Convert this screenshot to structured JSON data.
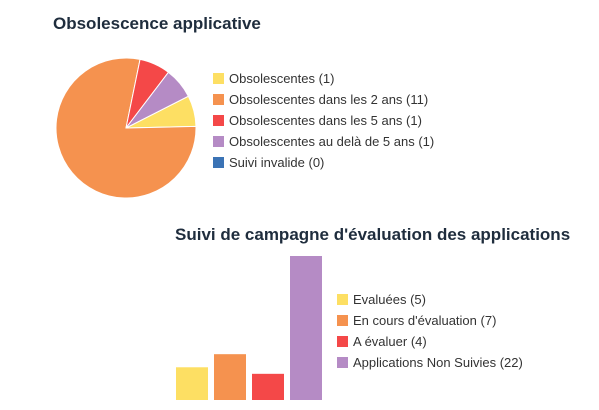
{
  "chart_data": [
    {
      "type": "pie",
      "title": "Obsolescence applicative",
      "legend_position": "right",
      "slices": [
        {
          "label": "Obsolescentes (1)",
          "value": 1,
          "color": "#fddf63"
        },
        {
          "label": "Obsolescentes dans les 2 ans (11)",
          "value": 11,
          "color": "#f5924f"
        },
        {
          "label": "Obsolescentes dans les 5 ans (1)",
          "value": 1,
          "color": "#f44848"
        },
        {
          "label": "Obsolescentes au delà de 5 ans (1)",
          "value": 1,
          "color": "#b58bc5"
        },
        {
          "label": "Suivi invalide (0)",
          "value": 0,
          "color": "#3b73b5"
        }
      ]
    },
    {
      "type": "bar",
      "title": "Suivi de campagne d'évaluation des applications",
      "legend_position": "right",
      "categories": [
        "Evaluées (5)",
        "En cours d'évaluation (7)",
        "A évaluer (4)",
        "Applications Non Suivies (22)"
      ],
      "values": [
        5,
        7,
        4,
        22
      ],
      "colors": [
        "#fddf63",
        "#f5924f",
        "#f44848",
        "#b58bc5"
      ],
      "ylim": [
        0,
        22
      ],
      "grid": false
    }
  ]
}
